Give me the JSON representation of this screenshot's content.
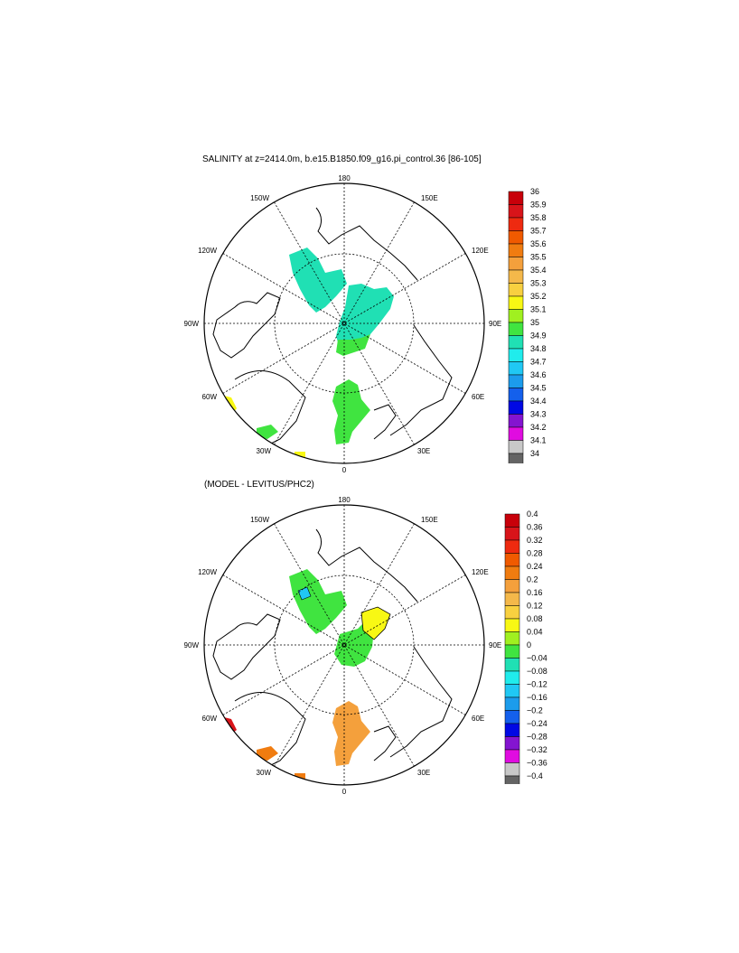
{
  "panel1": {
    "title": "SALINITY at z=2414.0m, b.e15.B1850.f09_g16.pi_control.36 [86-105]",
    "lon_labels": {
      "top": "180",
      "tr": "150E",
      "tl": "150W",
      "r_up": "120E",
      "l_up": "120W",
      "right": "90E",
      "left": "90W",
      "r_dn": "60E",
      "l_dn": "60W",
      "br": "30E",
      "bl": "30W",
      "bottom": "0"
    },
    "colorbar": {
      "labels": [
        "36",
        "35.9",
        "35.8",
        "35.7",
        "35.6",
        "35.5",
        "35.4",
        "35.3",
        "35.2",
        "35.1",
        "35",
        "34.9",
        "34.8",
        "34.7",
        "34.6",
        "34.5",
        "34.4",
        "34.3",
        "34.2",
        "34.1",
        "34"
      ],
      "colors": [
        "#c8000a",
        "#d8141a",
        "#ee2a10",
        "#f05a00",
        "#f07c10",
        "#f4a03c",
        "#f4b84a",
        "#f8d040",
        "#f8f814",
        "#a0f020",
        "#40e440",
        "#20e0b4",
        "#20ecec",
        "#20c8f4",
        "#1c9cec",
        "#1460ec",
        "#0008e4",
        "#8414d0",
        "#e00ce0",
        "#c8c8c8",
        "#646464"
      ]
    }
  },
  "panel2": {
    "title": "(MODEL - LEVITUS/PHC2)",
    "lon_labels": {
      "top": "180",
      "tr": "150E",
      "tl": "150W",
      "r_up": "120E",
      "l_up": "120W",
      "right": "90E",
      "left": "90W",
      "r_dn": "60E",
      "l_dn": "60W",
      "br": "30E",
      "bl": "30W",
      "bottom": "0"
    },
    "colorbar": {
      "labels": [
        "0.4",
        "0.36",
        "0.32",
        "0.28",
        "0.24",
        "0.2",
        "0.16",
        "0.12",
        "0.08",
        "0.04",
        "0",
        "−0.04",
        "−0.08",
        "−0.12",
        "−0.16",
        "−0.2",
        "−0.24",
        "−0.28",
        "−0.32",
        "−0.36",
        "−0.4"
      ],
      "colors": [
        "#c8000a",
        "#d8141a",
        "#ee2a10",
        "#f05a00",
        "#f07c10",
        "#f4a03c",
        "#f4b84a",
        "#f8d040",
        "#f8f814",
        "#a0f020",
        "#40e440",
        "#20e0b4",
        "#20ecec",
        "#20c8f4",
        "#1c9cec",
        "#1460ec",
        "#0008e4",
        "#8414d0",
        "#e00ce0",
        "#c8c8c8",
        "#646464"
      ]
    }
  }
}
